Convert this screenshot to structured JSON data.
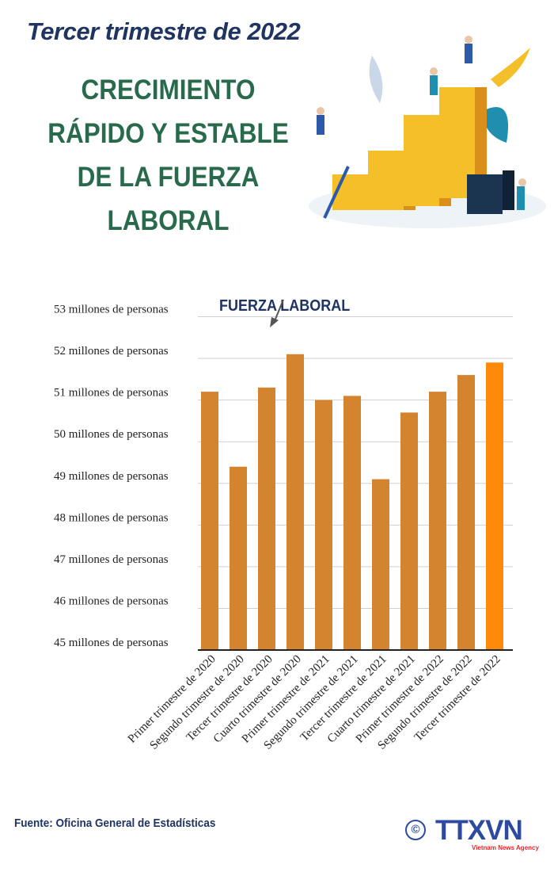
{
  "header": {
    "subtitle": "Tercer trimestre de 2022",
    "title_lines": [
      "CRECIMIENTO",
      "RÁPIDO Y ESTABLE",
      "DE LA FUERZA",
      "LABORAL"
    ]
  },
  "chart_data": {
    "type": "bar",
    "title": "",
    "series_label": "FUERZA LABORAL",
    "xlabel": "",
    "ylabel": "",
    "ylim": [
      45,
      53
    ],
    "grid": true,
    "yticks": [
      45,
      46,
      47,
      48,
      49,
      50,
      51,
      52,
      53
    ],
    "ytick_labels": [
      "45 millones de personas",
      "46 millones de personas",
      "47 millones de personas",
      "48 millones de personas",
      "49 millones de personas",
      "50 millones de personas",
      "51 millones de personas",
      "52 millones de personas",
      "53 millones de personas"
    ],
    "categories": [
      "Primer trimestre de 2020",
      "Segundo trimestre de 2020",
      "Tercer trimestre de 2020",
      "Cuarto trimestre de 2020",
      "Primer trimestre de 2021",
      "Segundo trimestre de 2021",
      "Tercer trimestre de 2021",
      "Cuarto trimestre de 2021",
      "Primer trimestre de 2022",
      "Segundo trimestre de 2022",
      "Tercer trimestre de 2022"
    ],
    "values": [
      51.2,
      49.4,
      51.3,
      52.1,
      51.0,
      51.1,
      49.1,
      50.7,
      51.2,
      51.6,
      51.9
    ],
    "colors": {
      "bar": "#d4842e",
      "highlight": "#ff8a0a",
      "grid": "#d0d0d0",
      "label_color": "#1f3461"
    }
  },
  "footer": {
    "source": "Fuente: Oficina General de Estadísticas",
    "logo_copyright": "©",
    "logo_text": "TTXVN",
    "logo_subtext": "Vietnam News Agency"
  }
}
